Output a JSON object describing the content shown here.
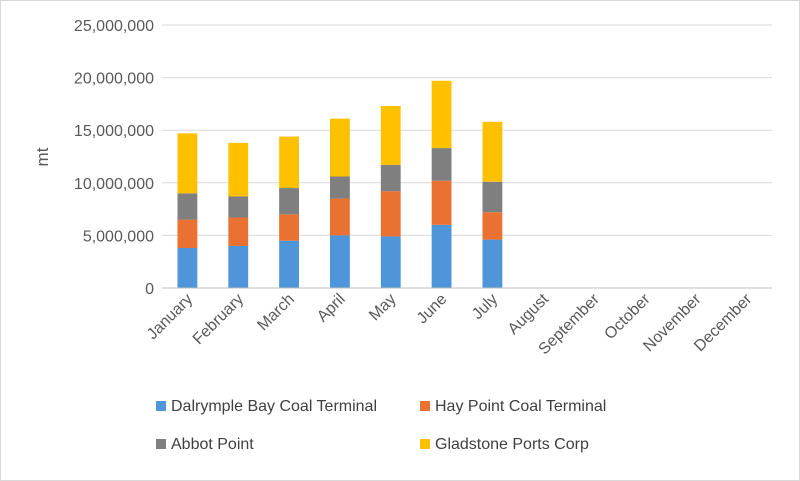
{
  "chart_data": {
    "type": "bar",
    "stacked": true,
    "ylabel": "mt",
    "ylim": [
      0,
      25000000
    ],
    "ytick_values": [
      0,
      5000000,
      10000000,
      15000000,
      20000000,
      25000000
    ],
    "ytick_labels": [
      "0",
      "5,000,000",
      "10,000,000",
      "15,000,000",
      "20,000,000",
      "25,000,000"
    ],
    "grid": true,
    "legend_position": "bottom",
    "categories": [
      "January",
      "February",
      "March",
      "April",
      "May",
      "June",
      "July",
      "August",
      "September",
      "October",
      "November",
      "December"
    ],
    "series": [
      {
        "name": "Dalrymple Bay Coal Terminal",
        "color": "#4e95d9",
        "values": [
          3800000,
          4000000,
          4500000,
          5000000,
          4900000,
          6000000,
          4600000,
          null,
          null,
          null,
          null,
          null
        ]
      },
      {
        "name": "Hay Point Coal Terminal",
        "color": "#e97132",
        "values": [
          2700000,
          2700000,
          2500000,
          3500000,
          4300000,
          4200000,
          2600000,
          null,
          null,
          null,
          null,
          null
        ]
      },
      {
        "name": "Abbot Point",
        "color": "#7f7f7f",
        "values": [
          2500000,
          2000000,
          2500000,
          2100000,
          2500000,
          3100000,
          2900000,
          null,
          null,
          null,
          null,
          null
        ]
      },
      {
        "name": "Gladstone Ports Corp",
        "color": "#ffc000",
        "values": [
          5700000,
          5100000,
          4900000,
          5500000,
          5600000,
          6400000,
          5700000,
          null,
          null,
          null,
          null,
          null
        ]
      }
    ]
  }
}
